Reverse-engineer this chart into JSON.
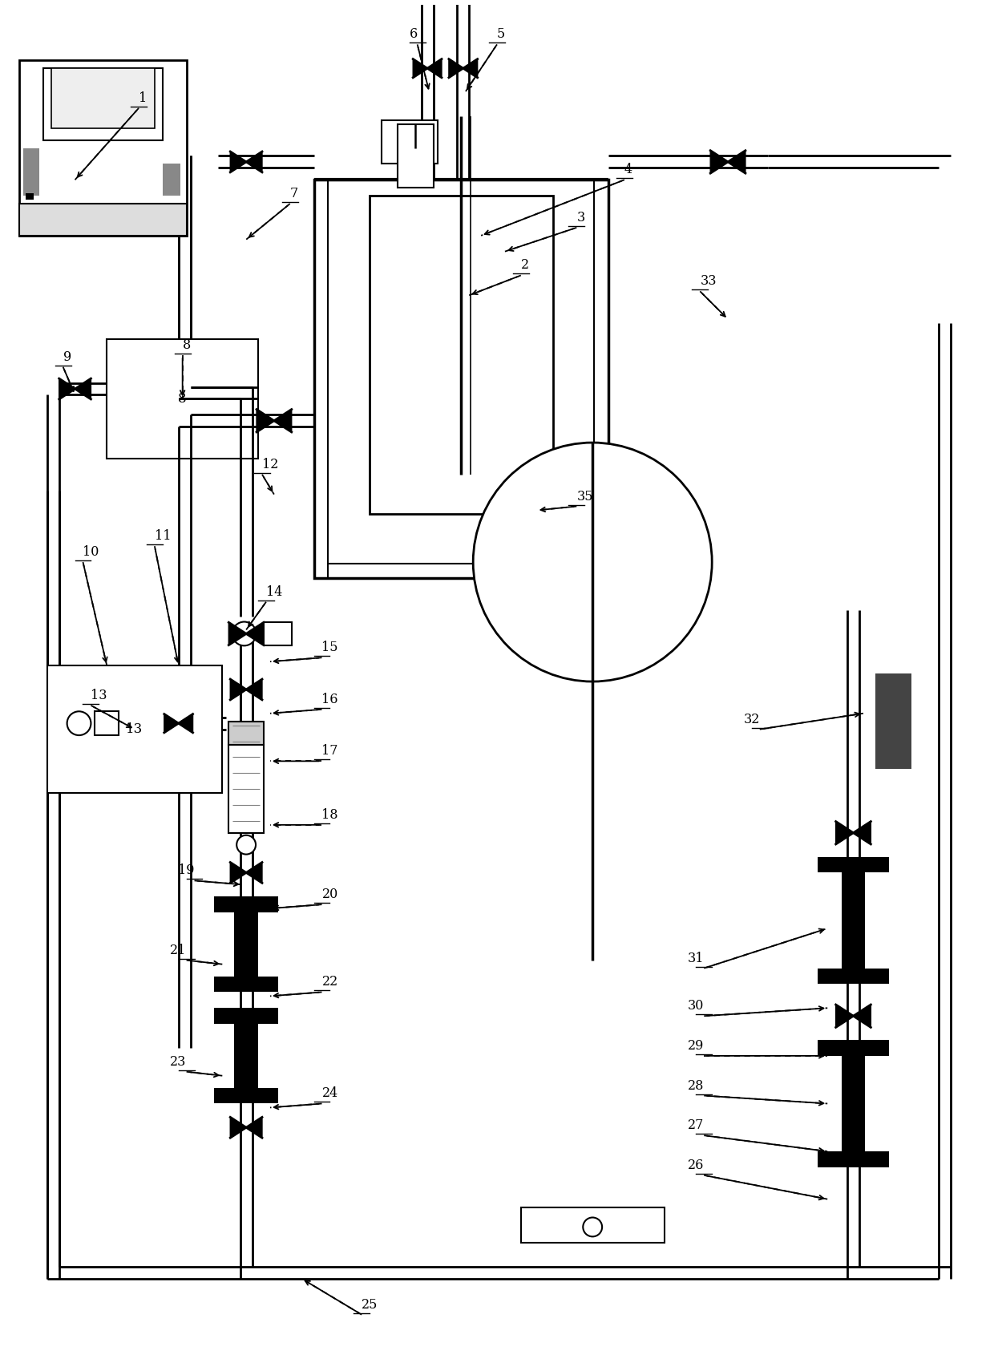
{
  "figsize": [
    12.4,
    17.1
  ],
  "dpi": 100,
  "lw": 2.0
}
